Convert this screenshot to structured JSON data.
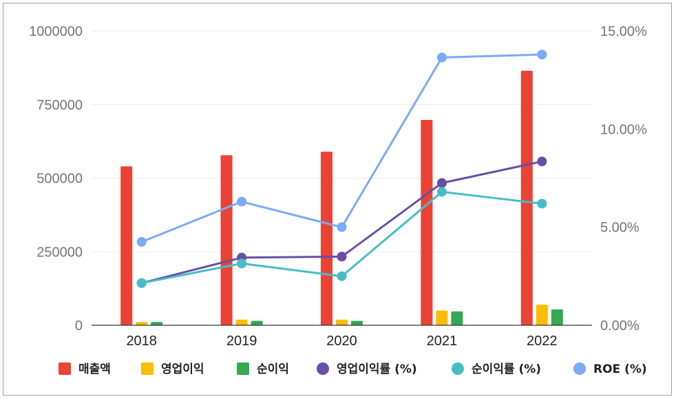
{
  "chart_data": {
    "type": "bar",
    "categories": [
      "2018",
      "2019",
      "2020",
      "2021",
      "2022"
    ],
    "y_left": {
      "ylim": [
        0,
        1000000
      ],
      "ticks": [
        "0",
        "250000",
        "500000",
        "750000",
        "1000000"
      ]
    },
    "y_right": {
      "ylim": [
        0,
        15
      ],
      "ticks": [
        "0.00%",
        "5.00%",
        "10.00%",
        "15.00%"
      ]
    },
    "grid": true,
    "legend_position": "bottom",
    "series": [
      {
        "name": "매출액",
        "kind": "bar",
        "axis": "left",
        "color": "#ea4335",
        "values": [
          540000,
          578000,
          590000,
          698000,
          865000
        ]
      },
      {
        "name": "영업이익",
        "kind": "bar",
        "axis": "left",
        "color": "#fbbc04",
        "values": [
          11000,
          19000,
          19000,
          50000,
          70000
        ]
      },
      {
        "name": "순이익",
        "kind": "bar",
        "axis": "left",
        "color": "#34a853",
        "values": [
          11000,
          15000,
          15000,
          47000,
          54000
        ]
      },
      {
        "name": "영업이익률 (%)",
        "kind": "line",
        "axis": "right",
        "color": "#674ea7",
        "values": [
          2.15,
          3.45,
          3.5,
          7.25,
          8.35
        ]
      },
      {
        "name": "순이익률 (%)",
        "kind": "line",
        "axis": "right",
        "color": "#46bdc6",
        "values": [
          2.15,
          3.15,
          2.5,
          6.8,
          6.2
        ]
      },
      {
        "name": "ROE (%)",
        "kind": "line",
        "axis": "right",
        "color": "#7baaf7",
        "values": [
          4.25,
          6.3,
          5.0,
          13.65,
          13.8
        ]
      }
    ]
  }
}
